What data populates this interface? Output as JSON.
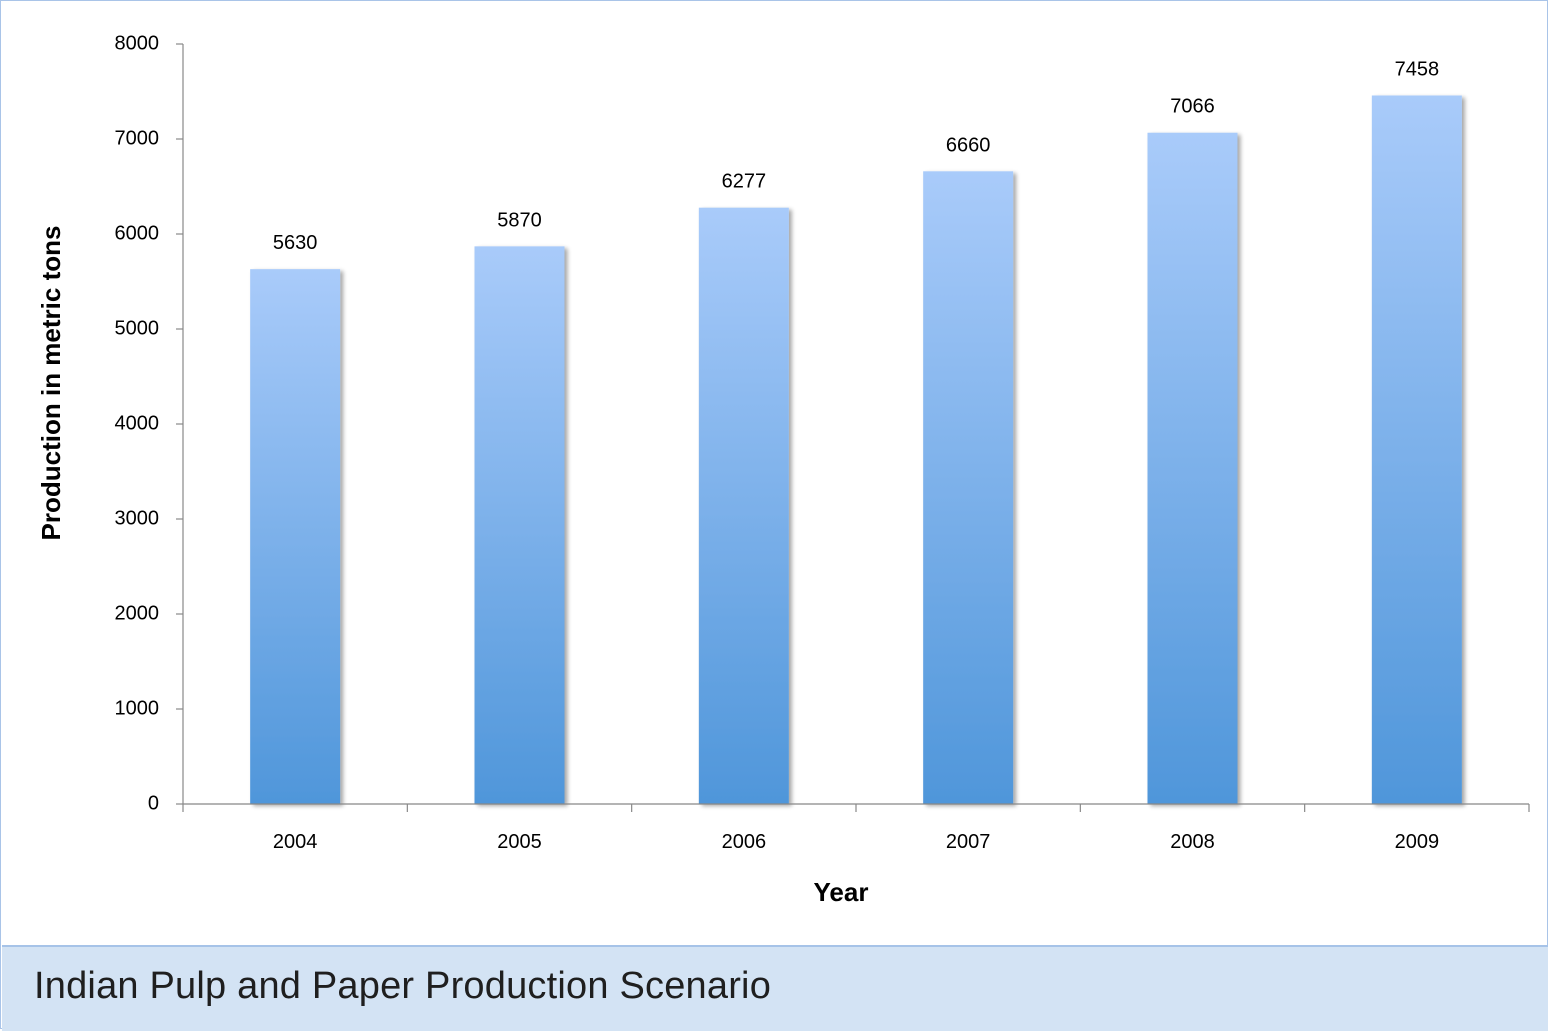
{
  "caption": "Indian Pulp and Paper Production Scenario",
  "colors": {
    "bar_top": "#a9cbfa",
    "bar_bottom": "#4f96da",
    "axis": "#888888",
    "text": "#000000"
  },
  "chart_data": {
    "type": "bar",
    "title": "",
    "xlabel": "Year",
    "ylabel": "Production in metric tons",
    "categories": [
      "2004",
      "2005",
      "2006",
      "2007",
      "2008",
      "2009"
    ],
    "values": [
      5630,
      5870,
      6277,
      6660,
      7066,
      7458
    ],
    "ylim": [
      0,
      8000
    ],
    "yticks": [
      0,
      1000,
      2000,
      3000,
      4000,
      5000,
      6000,
      7000,
      8000
    ],
    "data_labels": true,
    "grid": false,
    "legend": "none"
  }
}
